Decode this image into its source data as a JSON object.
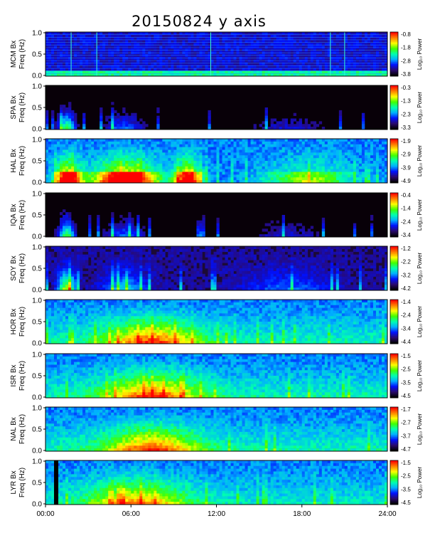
{
  "title": "20150824 y axis",
  "side_note": "",
  "chart_data": {
    "type": "heatmap",
    "x_ticks": [
      "00:00",
      "06:00",
      "12:00",
      "18:00",
      "24:00"
    ],
    "x_range_hours": [
      0,
      24
    ],
    "y_range_hz": [
      0,
      1.0
    ],
    "y_ticks": [
      "0.0",
      "0.5",
      "1.0"
    ],
    "colorbar_label": "Log₁₀ Power",
    "colormap": [
      "#000000",
      "#2a0a6e",
      "#0010ff",
      "#00b0ff",
      "#00ffb0",
      "#40ff00",
      "#ffff00",
      "#ff8000",
      "#ff0000"
    ],
    "panels": [
      {
        "station": "MCM",
        "axis_label": "MCM Bx",
        "freq_label": "Freq (Hz)",
        "colorbar_ticks": [
          "-0.8",
          "-1.8",
          "-2.8",
          "-3.8"
        ],
        "style": "mcm"
      },
      {
        "station": "SPA",
        "axis_label": "SPA Bx",
        "freq_label": "Freq (Hz)",
        "colorbar_ticks": [
          "-0.3",
          "-1.3",
          "-2.3",
          "-3.3"
        ],
        "style": "dark"
      },
      {
        "station": "HAL",
        "axis_label": "HAL Bx",
        "freq_label": "Freq (Hz)",
        "colorbar_ticks": [
          "-1.9",
          "-2.9",
          "-3.9",
          "-4.9"
        ],
        "style": "hot"
      },
      {
        "station": "IQA",
        "axis_label": "IQA Bx",
        "freq_label": "Freq (Hz)",
        "colorbar_ticks": [
          "-0.4",
          "-1.4",
          "-2.4",
          "-3.4"
        ],
        "style": "dark"
      },
      {
        "station": "SOY",
        "axis_label": "SOY Bx",
        "freq_label": "Freq (Hz)",
        "colorbar_ticks": [
          "-1.2",
          "-2.2",
          "-3.2",
          "-4.2"
        ],
        "style": "dim"
      },
      {
        "station": "HOR",
        "axis_label": "HOR Bx",
        "freq_label": "Freq (Hz)",
        "colorbar_ticks": [
          "-1.4",
          "-2.4",
          "-3.4",
          "-4.4"
        ],
        "style": "blue"
      },
      {
        "station": "ISR",
        "axis_label": "ISR Bx",
        "freq_label": "Freq (Hz)",
        "colorbar_ticks": [
          "-1.5",
          "-2.5",
          "-3.5",
          "-4.5"
        ],
        "style": "blue"
      },
      {
        "station": "NAL",
        "axis_label": "NAL Bx",
        "freq_label": "Freq (Hz)",
        "colorbar_ticks": [
          "-1.7",
          "-2.7",
          "-3.7",
          "-4.7"
        ],
        "style": "blue"
      },
      {
        "station": "LYR",
        "axis_label": "LYR Bx",
        "freq_label": "Freq (Hz)",
        "colorbar_ticks": [
          "-1.5",
          "-2.5",
          "-3.5",
          "-4.5"
        ],
        "style": "lyr"
      }
    ]
  }
}
